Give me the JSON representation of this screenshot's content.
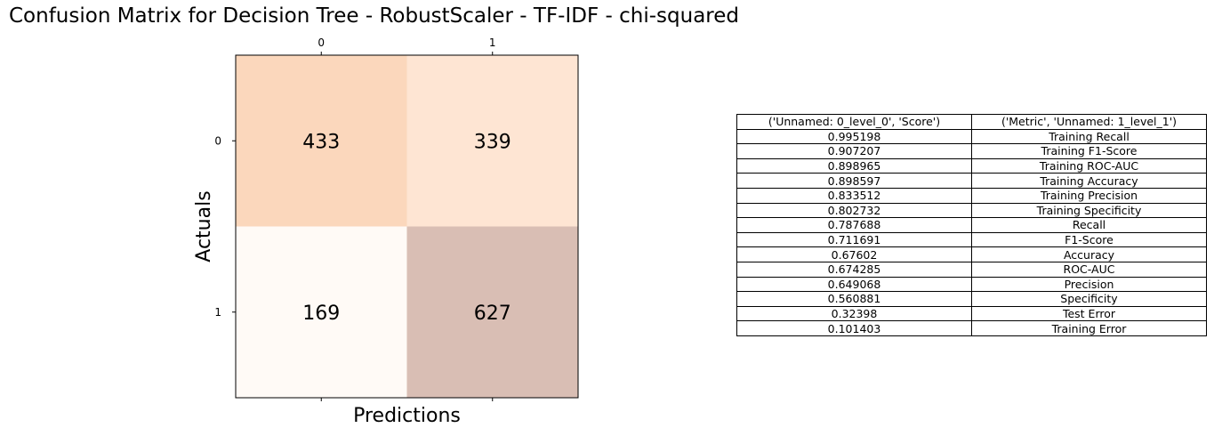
{
  "title": "Confusion Matrix for Decision Tree - RobustScaler - TF-IDF - chi-squared",
  "chart_data": [
    {
      "type": "heatmap",
      "xlabel": "Predictions",
      "ylabel": "Actuals",
      "x_ticks": [
        "0",
        "1"
      ],
      "y_ticks": [
        "0",
        "1"
      ],
      "matrix": [
        [
          433,
          339
        ],
        [
          169,
          627
        ]
      ],
      "cell_colors": [
        [
          "#fbd7bc",
          "#fee5d3"
        ],
        [
          "#fffaf6",
          "#d9beb4"
        ]
      ],
      "grid": false
    },
    {
      "type": "table",
      "columns": [
        "('Unnamed: 0_level_0', 'Score')",
        "('Metric', 'Unnamed: 1_level_1')"
      ],
      "rows": [
        [
          "0.995198",
          "Training Recall"
        ],
        [
          "0.907207",
          "Training F1-Score"
        ],
        [
          "0.898965",
          "Training ROC-AUC"
        ],
        [
          "0.898597",
          "Training Accuracy"
        ],
        [
          "0.833512",
          "Training Precision"
        ],
        [
          "0.802732",
          "Training Specificity"
        ],
        [
          "0.787688",
          "Recall"
        ],
        [
          "0.711691",
          "F1-Score"
        ],
        [
          "0.67602",
          "Accuracy"
        ],
        [
          "0.674285",
          "ROC-AUC"
        ],
        [
          "0.649068",
          "Precision"
        ],
        [
          "0.560881",
          "Specificity"
        ],
        [
          "0.32398",
          "Test Error"
        ],
        [
          "0.101403",
          "Training Error"
        ]
      ]
    }
  ]
}
